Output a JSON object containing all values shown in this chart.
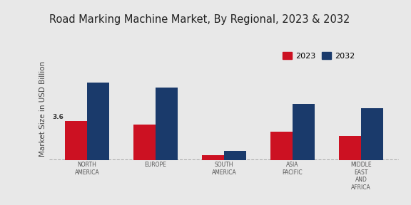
{
  "title": "Road Marking Machine Market, By Regional, 2023 & 2032",
  "ylabel": "Market Size in USD Billion",
  "categories": [
    "NORTH\nAMERICA",
    "EUROPE",
    "SOUTH\nAMERICA",
    "ASIA\nPACIFIC",
    "MIDDLE\nEAST\nAND\nAFRICA"
  ],
  "values_2023": [
    3.6,
    3.3,
    0.45,
    2.6,
    2.2
  ],
  "values_2032": [
    7.2,
    6.7,
    0.85,
    5.2,
    4.8
  ],
  "color_2023": "#cc1122",
  "color_2032": "#1a3a6b",
  "annotation_label": "3.6",
  "bar_width": 0.32,
  "background_color": "#e8e8e8",
  "title_fontsize": 10.5,
  "axis_label_fontsize": 7.5,
  "tick_fontsize": 5.5,
  "legend_fontsize": 8,
  "ylim": [
    0,
    9.5
  ]
}
